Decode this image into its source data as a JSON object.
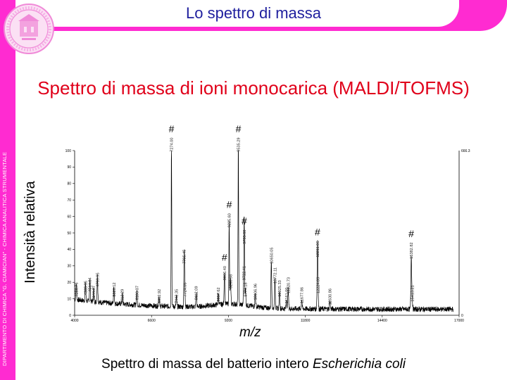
{
  "header": {
    "title": "Lo spettro di massa"
  },
  "sidebar": {
    "vertical_text": "DIPARTIMENTO DI CHIMICA \"G. CIAMICIAN\" - CHIMICA ANALITICA STRUMENTALE"
  },
  "heading": "Spettro di massa di ioni monocarica (MALDI/TOFMS)",
  "axis_labels": {
    "y": "Intensità relativa",
    "x": "m/z"
  },
  "caption": {
    "text": "Spettro di massa del batterio intero ",
    "italic": "Escherichia coli"
  },
  "colors": {
    "brand": "#ff2bd1",
    "title": "#1f1f9e",
    "heading": "#e0001a"
  },
  "chart_data": {
    "type": "line",
    "xlim": [
      4000,
      17000
    ],
    "ylim": [
      0,
      100
    ],
    "x_ticks": [
      4000,
      6600,
      9200,
      11800,
      14400,
      17000
    ],
    "y_ticks": [
      0,
      10,
      20,
      30,
      40,
      50,
      60,
      70,
      80,
      90,
      100
    ],
    "right_axis_labels": {
      "top": "666.3",
      "bottom": "0"
    },
    "peaks": [
      {
        "mz": 4056.76,
        "y": 10,
        "label": "4056.76"
      },
      {
        "mz": 4365.35,
        "y": 11,
        "label": "4365.35"
      },
      {
        "mz": 4514.84,
        "y": 13,
        "label": "4514.84"
      },
      {
        "mz": 4644.77,
        "y": 8,
        "label": "4644.77"
      },
      {
        "mz": 4769.95,
        "y": 16,
        "label": "4769.95"
      },
      {
        "mz": 5328.12,
        "y": 10,
        "label": "5328.12"
      },
      {
        "mz": 5612.29,
        "y": 6,
        "label": "5612.29"
      },
      {
        "mz": 6103.37,
        "y": 8,
        "label": "6103.37"
      },
      {
        "mz": 6852.92,
        "y": 6,
        "label": "6852.92"
      },
      {
        "mz": 7274.0,
        "y": 98,
        "label": "7274.00",
        "hash": true
      },
      {
        "mz": 7442.35,
        "y": 6,
        "label": "7442.35"
      },
      {
        "mz": 7705.45,
        "y": 30,
        "label": "7705.45"
      },
      {
        "mz": 7724.06,
        "y": 10,
        "label": "7724.06"
      },
      {
        "mz": 8112.09,
        "y": 8,
        "label": "8112.09"
      },
      {
        "mz": 8857.62,
        "y": 7,
        "label": "8857.62"
      },
      {
        "mz": 9066.4,
        "y": 20,
        "label": "9066.40",
        "hash": true
      },
      {
        "mz": 9225.6,
        "y": 52,
        "label": "9225.60",
        "hash": true
      },
      {
        "mz": 9268.98,
        "y": 15,
        "label": "9268.98"
      },
      {
        "mz": 9535.29,
        "y": 98,
        "label": "9535.29",
        "hash": true
      },
      {
        "mz": 9722.41,
        "y": 20,
        "label": "9722.41"
      },
      {
        "mz": 9735.6,
        "y": 42,
        "label": "9735.60",
        "hash": true
      },
      {
        "mz": 9774.18,
        "y": 10,
        "label": "9774.18"
      },
      {
        "mz": 10106.96,
        "y": 8,
        "label": "10106.96"
      },
      {
        "mz": 10650.05,
        "y": 30,
        "label": "10650.05"
      },
      {
        "mz": 10772.11,
        "y": 18,
        "label": "10772.11"
      },
      {
        "mz": 10925.33,
        "y": 10,
        "label": "10925.33"
      },
      {
        "mz": 11161.0,
        "y": 6,
        "label": "11161.00"
      },
      {
        "mz": 11220.73,
        "y": 12,
        "label": "11220.73"
      },
      {
        "mz": 11677.86,
        "y": 6,
        "label": "11677.86"
      },
      {
        "mz": 12211.06,
        "y": 34,
        "label": "12211.06",
        "hash": true
      },
      {
        "mz": 12224.09,
        "y": 12,
        "label": "12224.09"
      },
      {
        "mz": 12630.86,
        "y": 5,
        "label": "12630.86"
      },
      {
        "mz": 15382.82,
        "y": 33,
        "label": "15382.82",
        "hash": true
      },
      {
        "mz": 15413.21,
        "y": 7,
        "label": "15413.21"
      }
    ],
    "hash_marker": "#"
  }
}
